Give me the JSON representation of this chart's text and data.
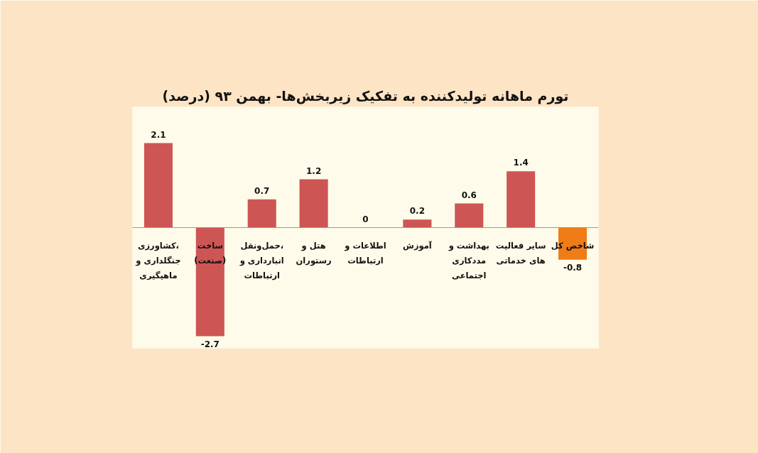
{
  "chart_data": {
    "type": "bar",
    "title": "تورم ماهانه تولیدکننده به تفکیک زیربخش‌ها- بهمن ۹۳ (درصد)",
    "categories": [
      "کشاورزی،\nجنگلداری و\nماهیگیری",
      "ساخت\n(صنعت)",
      "حمل‌ونقل،\nانبارداری و\nارتباطات",
      "هتل و\nرستوران",
      "اطلاعات و\nارتباطات",
      "آموزش",
      "بهداشت و\nمددکاری\nاجتماعی",
      "سایر فعالیت\nهای خدماتی",
      "شاخص کل"
    ],
    "values": [
      2.1,
      -2.7,
      0.7,
      1.2,
      0,
      0.2,
      0.6,
      1.4,
      -0.8
    ],
    "colors": [
      "#cd5654",
      "#cd5654",
      "#cd5654",
      "#cd5654",
      "#cd5654",
      "#cd5654",
      "#cd5654",
      "#cd5654",
      "#f07c18"
    ],
    "data_labels": true,
    "grid": false
  }
}
